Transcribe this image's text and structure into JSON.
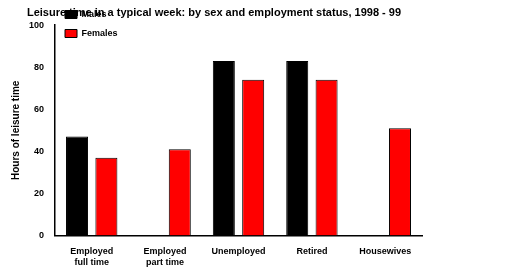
{
  "chart_data": {
    "type": "bar",
    "title": "Leisure time in a typical week: by sex and employment status, 1998 - 99",
    "y_label": "Hours of leisure time",
    "categories": [
      "Employed full time",
      "Employed part time",
      "Unemployed",
      "Retired",
      "Housewives"
    ],
    "series": [
      {
        "name": "Males",
        "color": "#000000",
        "values": [
          47,
          null,
          83,
          83,
          null
        ]
      },
      {
        "name": "Females",
        "color": "#ff0000",
        "values": [
          37,
          41,
          74,
          74,
          51
        ]
      }
    ],
    "ylim": [
      0,
      100
    ],
    "yticks": [
      0,
      20,
      40,
      60,
      80,
      100
    ],
    "grid": false,
    "legend": "upper left"
  }
}
